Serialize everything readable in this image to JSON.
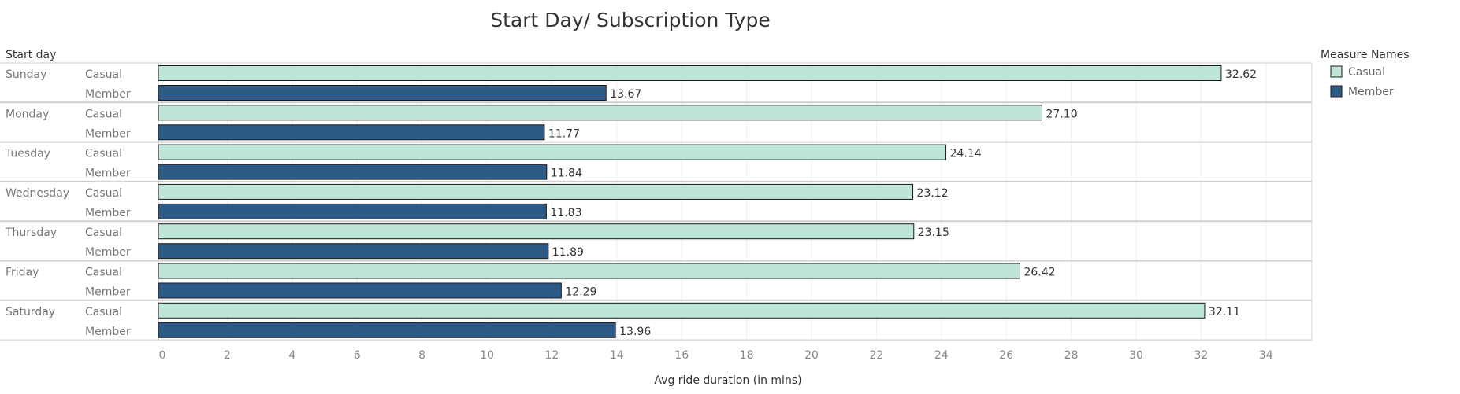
{
  "chart_data": {
    "type": "bar",
    "orientation": "horizontal",
    "title": "Start Day/ Subscription Type",
    "row_header": "Start day",
    "xlabel": "Avg ride duration (in mins)",
    "xlim": [
      0,
      34
    ],
    "xticks": [
      0,
      2,
      4,
      6,
      8,
      10,
      12,
      14,
      16,
      18,
      20,
      22,
      24,
      26,
      28,
      30,
      32,
      34
    ],
    "categories": [
      "Sunday",
      "Monday",
      "Tuesday",
      "Wednesday",
      "Thursday",
      "Friday",
      "Saturday"
    ],
    "series": [
      {
        "name": "Casual",
        "color": "#bde6d8",
        "values": [
          32.62,
          27.1,
          24.14,
          23.12,
          23.15,
          26.42,
          32.11
        ],
        "labels": [
          "32.62",
          "27.10",
          "24.14",
          "23.12",
          "23.15",
          "26.42",
          "32.11"
        ]
      },
      {
        "name": "Member",
        "color": "#2e5a87",
        "values": [
          13.67,
          11.77,
          11.84,
          11.83,
          11.89,
          12.29,
          13.96
        ],
        "labels": [
          "13.67",
          "11.77",
          "11.84",
          "11.83",
          "11.89",
          "12.29",
          "13.96"
        ]
      }
    ],
    "legend": {
      "title": "Measure Names",
      "position": "right"
    },
    "grid": true
  }
}
